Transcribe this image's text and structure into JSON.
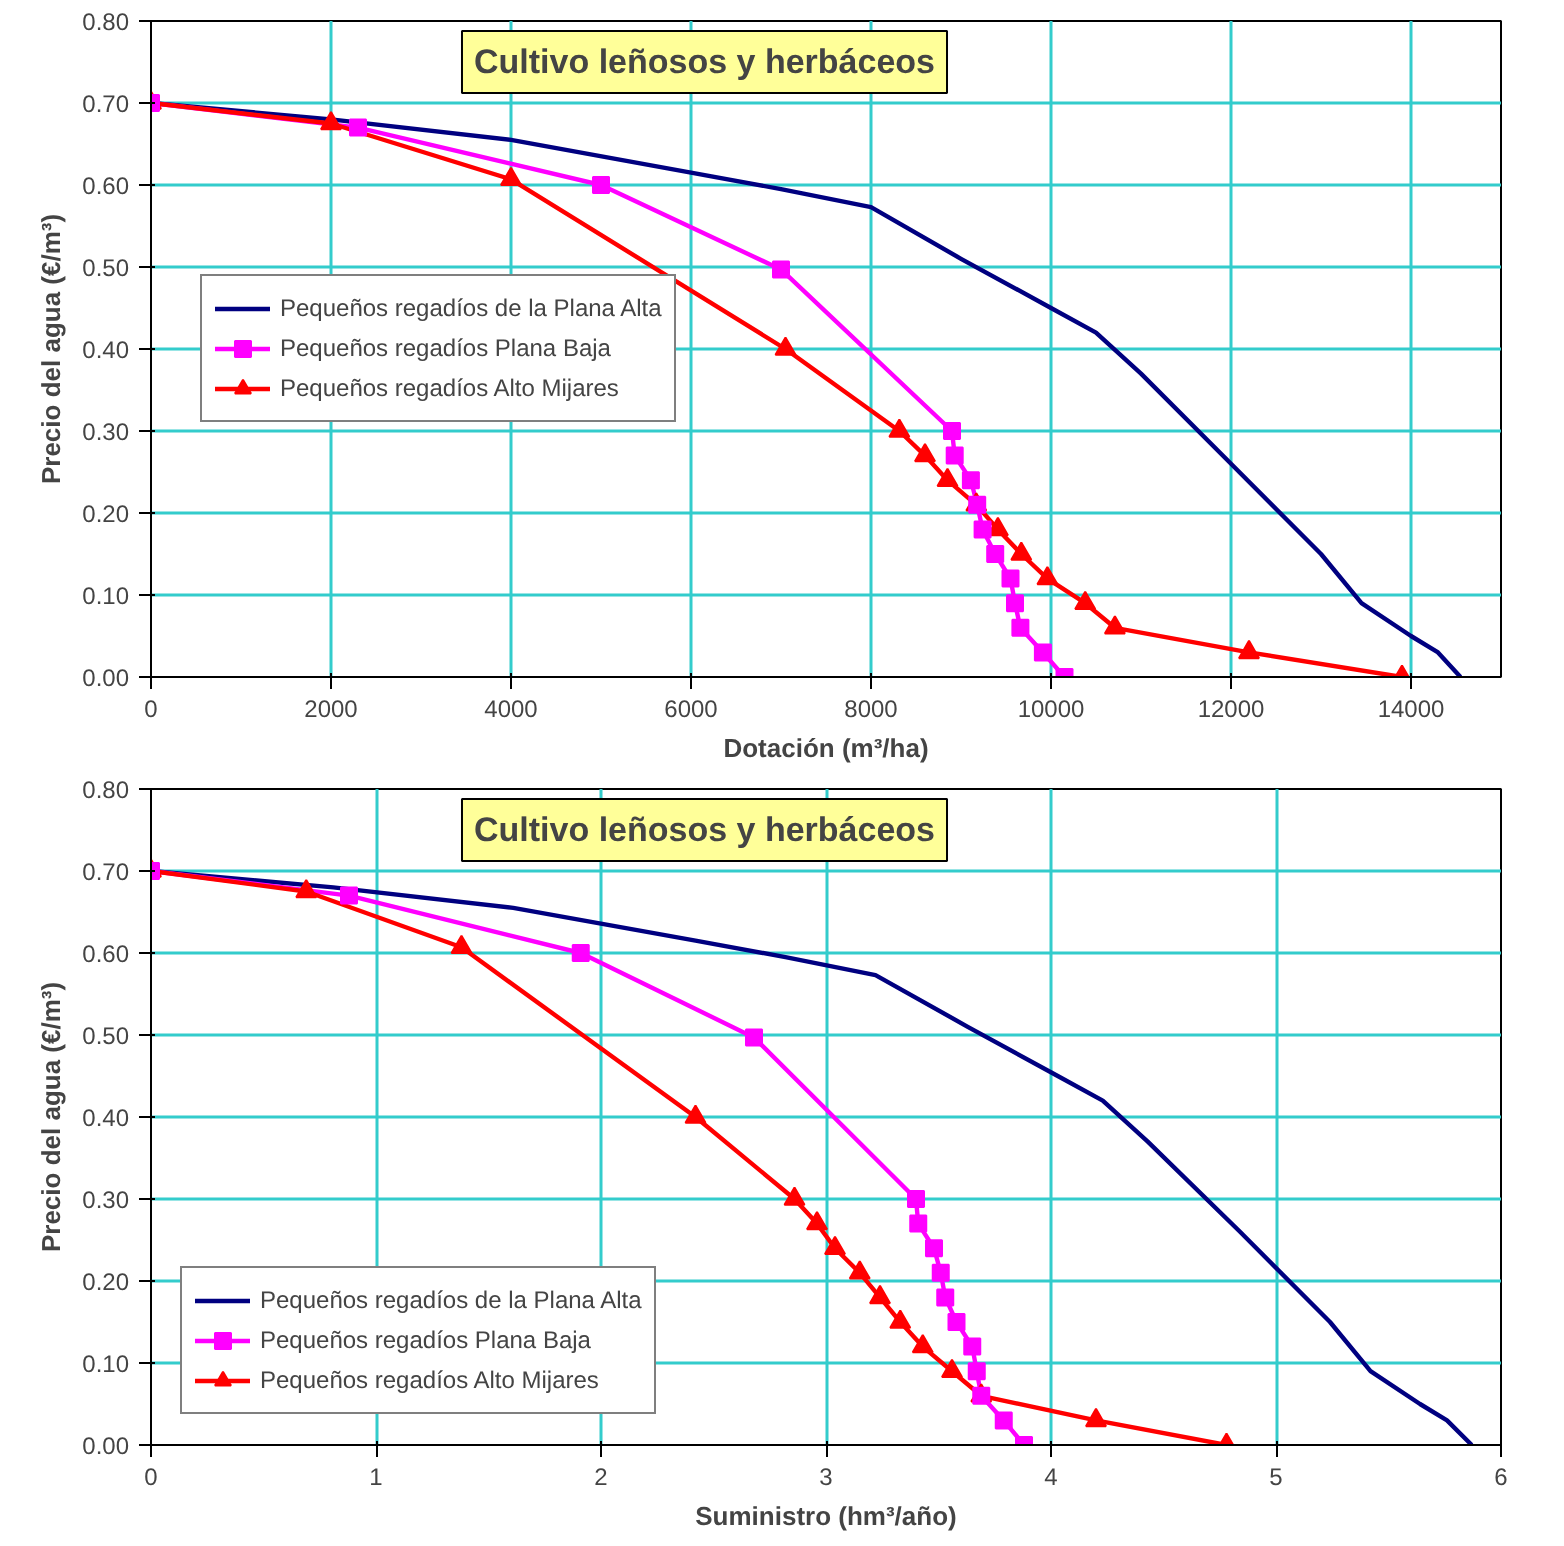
{
  "chart_data": [
    {
      "type": "line",
      "title": "Cultivo leñosos y herbáceos",
      "xlabel": "Dotación (m³/ha)",
      "ylabel": "Precio del agua (€/m³)",
      "xlim": [
        0,
        15000
      ],
      "xticks": [
        0,
        2000,
        4000,
        6000,
        8000,
        10000,
        12000,
        14000
      ],
      "ylim": [
        0,
        0.8
      ],
      "yticks": [
        {
          "value": 0,
          "label": "0.00"
        },
        {
          "value": 0.1,
          "label": "0.10"
        },
        {
          "value": 0.2,
          "label": "0.20"
        },
        {
          "value": 0.3,
          "label": "0.30"
        },
        {
          "value": 0.4,
          "label": "0.40"
        },
        {
          "value": 0.5,
          "label": "0.50"
        },
        {
          "value": 0.6,
          "label": "0.60"
        },
        {
          "value": 0.7,
          "label": "0.70"
        },
        {
          "value": 0.8,
          "label": "0.80"
        }
      ],
      "grid": true,
      "legend": "left",
      "line_style": "solid",
      "series": [
        {
          "name": "Pequeños regadíos de la Plana Alta",
          "color": "#000080",
          "marker": "none",
          "x": [
            0,
            2000,
            4000,
            6000,
            7000,
            8000,
            9000,
            10000,
            10500,
            11000,
            12000,
            13000,
            13450,
            14000,
            14300,
            14550
          ],
          "values": [
            0.7,
            0.68,
            0.655,
            0.615,
            0.595,
            0.573,
            0.51,
            0.45,
            0.42,
            0.37,
            0.26,
            0.15,
            0.09,
            0.05,
            0.03,
            0.0
          ]
        },
        {
          "name": "Pequeños regadíos Plana Baja",
          "color": "#ff00ff",
          "marker": "square",
          "x": [
            0,
            2300,
            5000,
            7000,
            8900,
            8930,
            9110,
            9180,
            9240,
            9380,
            9550,
            9600,
            9660,
            9910,
            10150
          ],
          "values": [
            0.7,
            0.67,
            0.6,
            0.497,
            0.3,
            0.27,
            0.24,
            0.21,
            0.18,
            0.15,
            0.12,
            0.09,
            0.06,
            0.03,
            0.0
          ]
        },
        {
          "name": "Pequeños regadíos Alto Mijares",
          "color": "#ff0000",
          "marker": "triangle",
          "x": [
            0,
            2000,
            4000,
            7050,
            8315,
            8600,
            8850,
            9170,
            9410,
            9670,
            9960,
            10380,
            10710,
            12200,
            13900
          ],
          "values": [
            0.7,
            0.675,
            0.607,
            0.4,
            0.3,
            0.27,
            0.24,
            0.21,
            0.18,
            0.15,
            0.12,
            0.09,
            0.06,
            0.03,
            0.0
          ]
        }
      ]
    },
    {
      "type": "line",
      "title": "Cultivo leñosos y herbáceos",
      "xlabel": "Suministro (hm³/año)",
      "ylabel": "Precio del agua (€/m³)",
      "xlim": [
        0,
        6
      ],
      "xticks": [
        0,
        1,
        2,
        3,
        4,
        5,
        6
      ],
      "ylim": [
        0,
        0.8
      ],
      "yticks": [
        {
          "value": 0,
          "label": "0.00"
        },
        {
          "value": 0.1,
          "label": "0.10"
        },
        {
          "value": 0.2,
          "label": "0.20"
        },
        {
          "value": 0.3,
          "label": "0.30"
        },
        {
          "value": 0.4,
          "label": "0.40"
        },
        {
          "value": 0.5,
          "label": "0.50"
        },
        {
          "value": 0.6,
          "label": "0.60"
        },
        {
          "value": 0.7,
          "label": "0.70"
        },
        {
          "value": 0.8,
          "label": "0.80"
        }
      ],
      "grid": true,
      "legend": "bottom left",
      "line_style": "solid",
      "series": [
        {
          "name": "Pequeños regadíos de la Plana Alta",
          "color": "#000080",
          "marker": "none",
          "x": [
            0,
            0.81,
            1.61,
            2.42,
            2.82,
            3.22,
            3.63,
            4.03,
            4.23,
            4.43,
            4.84,
            5.24,
            5.42,
            5.64,
            5.76,
            5.87
          ],
          "values": [
            0.7,
            0.68,
            0.655,
            0.615,
            0.595,
            0.573,
            0.51,
            0.45,
            0.42,
            0.37,
            0.26,
            0.15,
            0.09,
            0.05,
            0.03,
            0.0
          ]
        },
        {
          "name": "Pequeños regadíos Plana Baja",
          "color": "#ff00ff",
          "marker": "square",
          "x": [
            0,
            0.88,
            1.91,
            2.68,
            3.4,
            3.41,
            3.48,
            3.51,
            3.53,
            3.58,
            3.65,
            3.67,
            3.69,
            3.79,
            3.88
          ],
          "values": [
            0.7,
            0.67,
            0.6,
            0.497,
            0.3,
            0.27,
            0.24,
            0.21,
            0.18,
            0.15,
            0.12,
            0.09,
            0.06,
            0.03,
            0.0
          ]
        },
        {
          "name": "Pequeños regadíos Alto Mijares",
          "color": "#ff0000",
          "marker": "triangle",
          "x": [
            0,
            0.69,
            1.38,
            2.42,
            2.86,
            2.96,
            3.04,
            3.15,
            3.24,
            3.33,
            3.43,
            3.56,
            3.69,
            4.2,
            4.78
          ],
          "values": [
            0.7,
            0.675,
            0.607,
            0.4,
            0.3,
            0.27,
            0.24,
            0.21,
            0.18,
            0.15,
            0.12,
            0.09,
            0.06,
            0.03,
            0.0
          ]
        }
      ]
    }
  ]
}
